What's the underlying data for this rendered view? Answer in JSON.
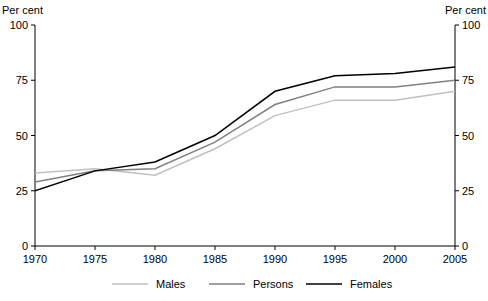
{
  "chart_data": {
    "type": "line",
    "y_label": "Per cent",
    "y2_label": "Per cent",
    "x": [
      1970,
      1975,
      1980,
      1985,
      1990,
      1995,
      2000,
      2005
    ],
    "xlim": [
      1970,
      2005
    ],
    "xticks": [
      1970,
      1975,
      1980,
      1985,
      1990,
      1995,
      2000,
      2005
    ],
    "ylim": [
      0,
      100
    ],
    "yticks": [
      0,
      25,
      50,
      75,
      100
    ],
    "y2lim": [
      0,
      100
    ],
    "y2ticks": [
      0,
      25,
      50,
      75,
      100
    ],
    "grid": false,
    "legend": "bottom",
    "series": [
      {
        "name": "Males",
        "color": "#c0c0c0",
        "values": [
          33,
          35,
          32,
          44,
          59,
          66,
          66,
          70
        ]
      },
      {
        "name": "Persons",
        "color": "#808080",
        "values": [
          29,
          34,
          35,
          47,
          64,
          72,
          72,
          75
        ]
      },
      {
        "name": "Females",
        "color": "#000000",
        "values": [
          25,
          34,
          38,
          50,
          70,
          77,
          78,
          81
        ]
      }
    ]
  }
}
